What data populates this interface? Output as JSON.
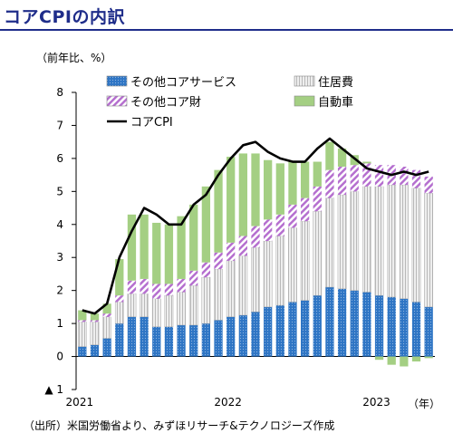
{
  "title": "コアCPIの内訳",
  "unit_label": "（前年比、%）",
  "source_note": "（出所）米国労働省より、みずほリサーチ&テクノロジーズ作成",
  "chart_data": {
    "type": "bar",
    "stacked": true,
    "ylim": [
      -1,
      8
    ],
    "yticks": [
      -1,
      0,
      1,
      2,
      3,
      4,
      5,
      6,
      7,
      8
    ],
    "ytick_labels": [
      "▲ 1",
      "0",
      "1",
      "2",
      "3",
      "4",
      "5",
      "6",
      "7",
      "8"
    ],
    "x_tick_labels": [
      {
        "index": 0,
        "label": "2021"
      },
      {
        "index": 12,
        "label": "2022"
      },
      {
        "index": 24,
        "label": "2023"
      }
    ],
    "x_unit": "（年）",
    "legend_position": "top",
    "categories": [
      "2021-01",
      "2021-02",
      "2021-03",
      "2021-04",
      "2021-05",
      "2021-06",
      "2021-07",
      "2021-08",
      "2021-09",
      "2021-10",
      "2021-11",
      "2021-12",
      "2022-01",
      "2022-02",
      "2022-03",
      "2022-04",
      "2022-05",
      "2022-06",
      "2022-07",
      "2022-08",
      "2022-09",
      "2022-10",
      "2022-11",
      "2022-12",
      "2023-01",
      "2023-02",
      "2023-03",
      "2023-04",
      "2023-05"
    ],
    "series": [
      {
        "name": "その他コアサービス",
        "color": "#2e75c4",
        "pattern": "dots",
        "values": [
          0.3,
          0.35,
          0.55,
          1.0,
          1.2,
          1.2,
          0.9,
          0.9,
          0.95,
          0.95,
          1.0,
          1.1,
          1.2,
          1.25,
          1.35,
          1.5,
          1.55,
          1.65,
          1.7,
          1.85,
          2.1,
          2.05,
          2.0,
          1.95,
          1.85,
          1.8,
          1.75,
          1.65,
          1.5
        ]
      },
      {
        "name": "住居費",
        "color": "#e6e6e6",
        "pattern": "lines",
        "values": [
          0.75,
          0.7,
          0.65,
          0.65,
          0.7,
          0.7,
          0.85,
          0.95,
          1.0,
          1.2,
          1.4,
          1.55,
          1.7,
          1.8,
          1.95,
          2.0,
          2.1,
          2.25,
          2.4,
          2.55,
          2.7,
          2.85,
          3.0,
          3.2,
          3.3,
          3.4,
          3.45,
          3.45,
          3.45
        ]
      },
      {
        "name": "その他コア財",
        "color": "#c79ad6",
        "pattern": "diag",
        "values": [
          0.05,
          0.05,
          0.1,
          0.2,
          0.4,
          0.45,
          0.45,
          0.35,
          0.4,
          0.45,
          0.45,
          0.5,
          0.55,
          0.6,
          0.65,
          0.65,
          0.65,
          0.7,
          0.7,
          0.75,
          0.85,
          0.85,
          0.8,
          0.7,
          0.65,
          0.6,
          0.55,
          0.55,
          0.5
        ]
      },
      {
        "name": "自動車",
        "color": "#a4cf83",
        "pattern": "none",
        "values": [
          0.3,
          0.2,
          0.3,
          1.1,
          2.0,
          1.95,
          1.85,
          1.8,
          1.9,
          2.0,
          2.3,
          2.5,
          2.6,
          2.5,
          2.2,
          1.8,
          1.55,
          1.3,
          1.1,
          0.75,
          0.85,
          0.55,
          0.3,
          0.05,
          -0.1,
          -0.25,
          -0.3,
          -0.15,
          -0.05
        ]
      }
    ],
    "line": {
      "name": "コアCPI",
      "color": "#000000",
      "values": [
        1.4,
        1.3,
        1.6,
        3.0,
        3.8,
        4.5,
        4.3,
        4.0,
        4.0,
        4.6,
        4.9,
        5.5,
        6.0,
        6.4,
        6.5,
        6.2,
        6.0,
        5.9,
        5.9,
        6.3,
        6.6,
        6.3,
        6.0,
        5.7,
        5.6,
        5.5,
        5.6,
        5.5,
        5.6
      ]
    }
  }
}
